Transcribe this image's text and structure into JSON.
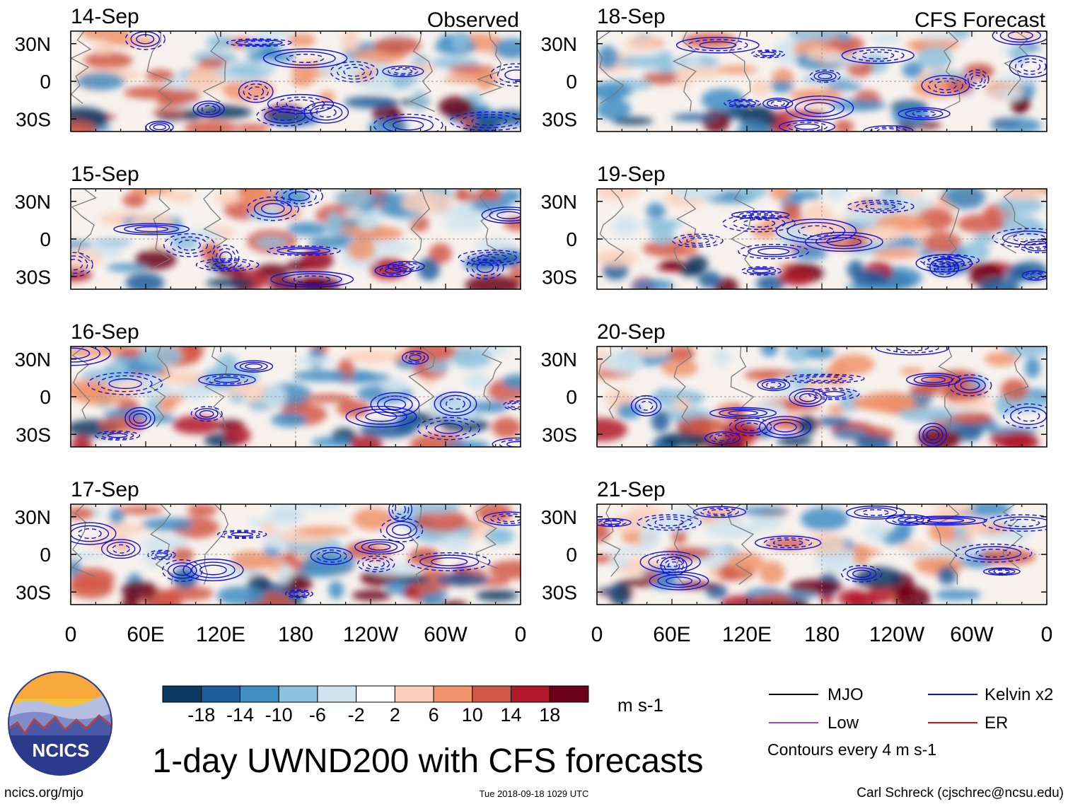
{
  "chart_data": {
    "type": "heatmap",
    "title": "1-day UWND200 with CFS forecasts",
    "variable": "200-hPa zonal wind anomaly (shaded), filtered wave contours",
    "panel_groups": [
      {
        "label": "Observed",
        "dates": [
          "14-Sep",
          "15-Sep",
          "16-Sep",
          "17-Sep"
        ]
      },
      {
        "label": "CFS Forecast",
        "dates": [
          "18-Sep",
          "19-Sep",
          "20-Sep",
          "21-Sep"
        ]
      }
    ],
    "y_ticks": [
      "30N",
      "0",
      "30S"
    ],
    "y_range_deg": [
      -40,
      40
    ],
    "x_ticks": [
      "0",
      "60E",
      "120E",
      "180",
      "120W",
      "60W",
      "0"
    ],
    "x_range_deg": [
      0,
      360
    ],
    "colorbar": {
      "units": "m s-1",
      "tick_labels": [
        "-18",
        "-14",
        "-10",
        "-6",
        "-2",
        "2",
        "6",
        "10",
        "14",
        "18"
      ],
      "colors": [
        "#0c3a63",
        "#1d5d9b",
        "#3f8dc4",
        "#8cc1dd",
        "#cfe4ef",
        "#ffffff",
        "#fbd0bb",
        "#f0946b",
        "#d25745",
        "#b2182b",
        "#6b0019"
      ]
    },
    "legend": {
      "entries": [
        {
          "name": "MJO",
          "color": "#000000"
        },
        {
          "name": "Kelvin x2",
          "color": "#1010dd"
        },
        {
          "name": "Low",
          "color": "#b040d0"
        },
        {
          "name": "ER",
          "color": "#dd1111"
        }
      ],
      "note": "Contours every 4 m s-1"
    }
  },
  "footer": {
    "logo_text": "NCICS",
    "site": "ncics.org/mjo",
    "timestamp": "Tue 2018-09-18 1029 UTC",
    "credit": "Carl Schreck (cjschrec@ncsu.edu)"
  }
}
